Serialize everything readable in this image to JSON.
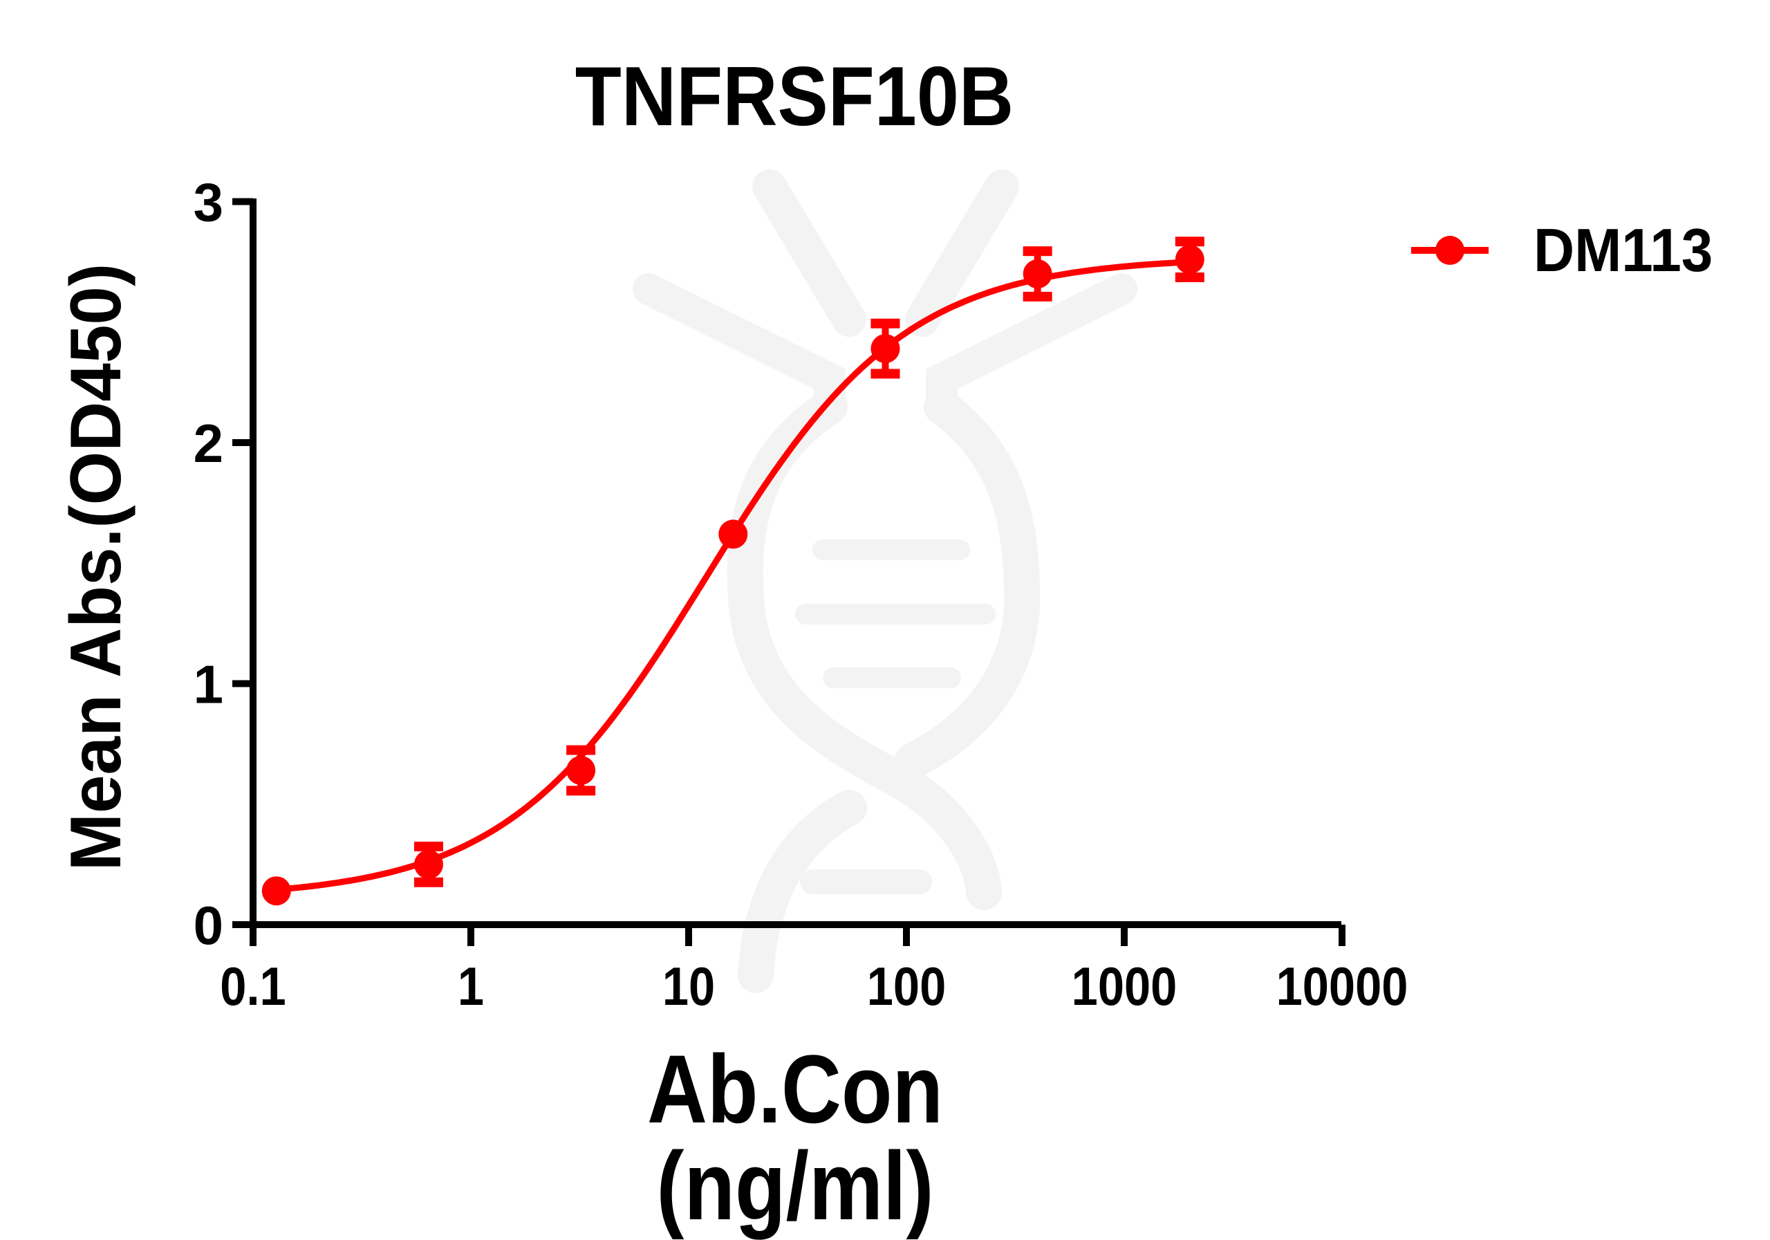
{
  "chart_data": {
    "type": "line",
    "title": "TNFRSF10B",
    "xlabel": "Ab.Con (ng/ml)",
    "ylabel": "Mean Abs.(OD450)",
    "x_scale": "log10",
    "xlim": [
      0.1,
      10000
    ],
    "ylim": [
      0,
      3
    ],
    "x_ticks": [
      "0.1",
      "1",
      "10",
      "100",
      "1000",
      "10000"
    ],
    "y_ticks": [
      "0",
      "1",
      "2",
      "3"
    ],
    "grid": false,
    "legend_position": "right-top",
    "series": [
      {
        "name": "DM113",
        "color": "#ff0000",
        "marker": "circle",
        "x": [
          0.128,
          0.64,
          3.2,
          16,
          80,
          400,
          2000
        ],
        "y": [
          0.14,
          0.25,
          0.64,
          1.62,
          2.39,
          2.7,
          2.76
        ],
        "error": [
          0.02,
          0.08,
          0.09,
          0.03,
          0.11,
          0.1,
          0.08
        ],
        "fit": {
          "model": "4PL",
          "bottom": 0.11,
          "top": 2.77,
          "ec50": 12,
          "hill": 0.95
        }
      }
    ]
  },
  "watermark": {
    "color": "#f3f3f3"
  }
}
